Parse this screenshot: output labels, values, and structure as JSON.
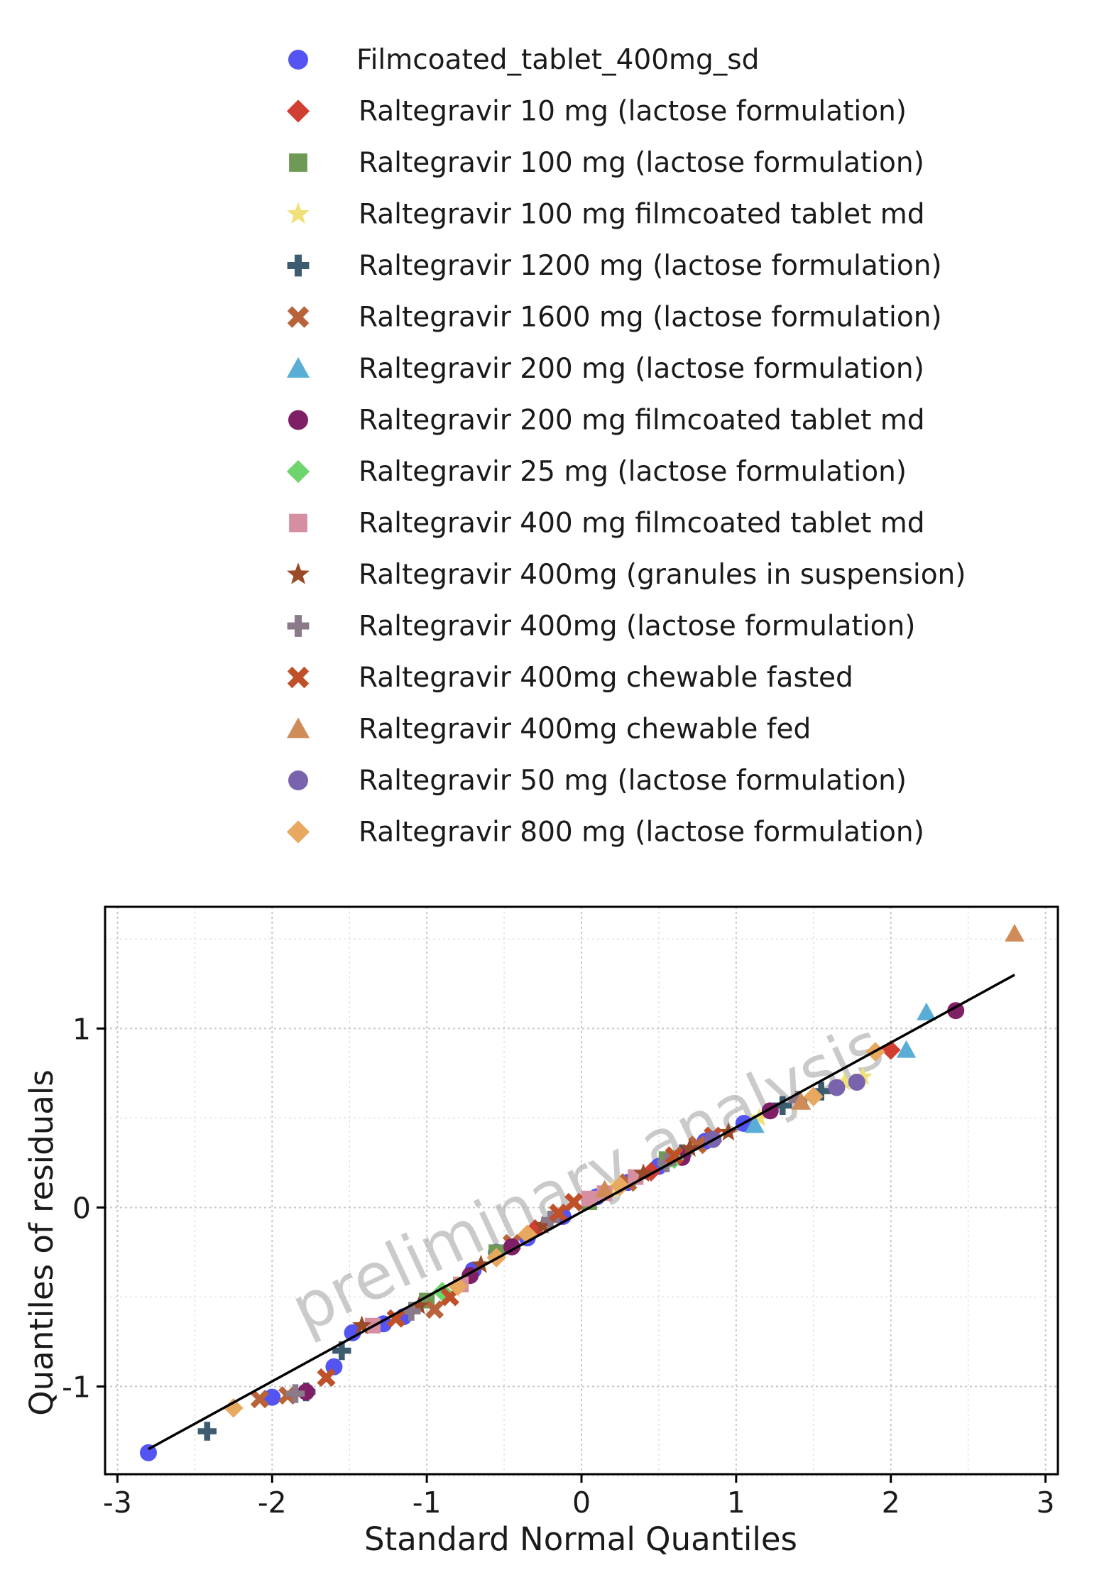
{
  "chart_data": {
    "type": "scatter",
    "xlabel": "Standard Normal Quantiles",
    "ylabel": "Quantiles of residuals",
    "watermark": "preliminary analysis",
    "xlim": [
      -3.08,
      3.08
    ],
    "ylim": [
      -1.49,
      1.68
    ],
    "xticks": [
      -3,
      -2,
      -1,
      0,
      1,
      2,
      3
    ],
    "yticks": [
      -1,
      0,
      1
    ],
    "grid": true,
    "legend_position": "top",
    "reference_line": {
      "x": [
        -2.8,
        2.8
      ],
      "y": [
        -1.35,
        1.3
      ]
    },
    "series": [
      {
        "name": "Filmcoated_tablet_400mg_sd",
        "marker": "circle",
        "color": "#5454f2",
        "x": [
          -2.8,
          -2.0,
          -1.6,
          -1.48,
          -1.28,
          -1.15,
          -0.7,
          -0.55,
          -0.35,
          -0.12,
          0.1,
          0.3,
          0.5,
          0.8,
          1.05
        ],
        "y": [
          -1.37,
          -1.06,
          -0.89,
          -0.7,
          -0.65,
          -0.61,
          -0.35,
          -0.25,
          -0.17,
          -0.05,
          0.06,
          0.14,
          0.23,
          0.37,
          0.47
        ]
      },
      {
        "name": "Raltegravir 10 mg (lactose formulation)",
        "marker": "diamond",
        "color": "#d13f32",
        "x": [
          -0.3,
          0.45,
          2.0
        ],
        "y": [
          -0.12,
          0.2,
          0.88
        ]
      },
      {
        "name": "Raltegravir 100 mg (lactose formulation)",
        "marker": "square",
        "color": "#6e9a55",
        "x": [
          -1.0,
          -0.55,
          0.05,
          0.55
        ],
        "y": [
          -0.52,
          -0.25,
          0.03,
          0.27
        ]
      },
      {
        "name": "Raltegravir 100 mg filmcoated tablet md",
        "marker": "star",
        "color": "#f0e07a",
        "x": [
          0.2,
          1.15,
          1.7,
          1.82
        ],
        "y": [
          0.1,
          0.5,
          0.7,
          0.73
        ]
      },
      {
        "name": "Raltegravir 1200 mg (lactose formulation)",
        "marker": "plus",
        "color": "#3d5c70",
        "x": [
          -2.42,
          -1.78,
          -1.55,
          0.65,
          1.3,
          1.55
        ],
        "y": [
          -1.25,
          -1.03,
          -0.8,
          0.3,
          0.57,
          0.65
        ]
      },
      {
        "name": "Raltegravir 1600 mg (lactose formulation)",
        "marker": "x",
        "color": "#b8633a",
        "x": [
          -2.08,
          -1.9,
          -0.95,
          -0.45,
          0.3,
          0.75
        ],
        "y": [
          -1.07,
          -1.05,
          -0.57,
          -0.2,
          0.14,
          0.35
        ]
      },
      {
        "name": "Raltegravir 200 mg (lactose formulation)",
        "marker": "triangle",
        "color": "#5aaed6",
        "x": [
          1.12,
          2.1,
          2.23
        ],
        "y": [
          0.46,
          0.88,
          1.09
        ]
      },
      {
        "name": "Raltegravir 200 mg filmcoated tablet md",
        "marker": "circle",
        "color": "#7f1f66",
        "x": [
          -1.78,
          -0.72,
          -0.45,
          0.65,
          1.22,
          2.42
        ],
        "y": [
          -1.03,
          -0.38,
          -0.22,
          0.28,
          0.54,
          1.1
        ]
      },
      {
        "name": "Raltegravir 25 mg (lactose formulation)",
        "marker": "diamond",
        "color": "#6ed46e",
        "x": [
          -0.9,
          0.6
        ],
        "y": [
          -0.47,
          0.27
        ]
      },
      {
        "name": "Raltegravir 400 mg filmcoated tablet md",
        "marker": "square",
        "color": "#d68fa0",
        "x": [
          -1.35,
          -0.78,
          0.05,
          0.15,
          0.35
        ],
        "y": [
          -0.66,
          -0.43,
          0.05,
          0.08,
          0.17
        ]
      },
      {
        "name": "Raltegravir 400mg (granules in suspension)",
        "marker": "star",
        "color": "#9a4a28",
        "x": [
          -1.42,
          -1.05,
          -0.65,
          -0.25,
          0.4,
          0.7,
          0.95
        ],
        "y": [
          -0.66,
          -0.55,
          -0.32,
          -0.1,
          0.19,
          0.33,
          0.42
        ]
      },
      {
        "name": "Raltegravir 400mg (lactose formulation)",
        "marker": "plus",
        "color": "#8a7a8a",
        "x": [
          -1.85,
          -1.1,
          -0.2,
          0.55,
          1.4
        ],
        "y": [
          -1.04,
          -0.58,
          -0.07,
          0.25,
          0.6
        ]
      },
      {
        "name": "Raltegravir 400mg chewable fasted",
        "marker": "x",
        "color": "#c0502a",
        "x": [
          -1.65,
          -1.2,
          -0.85,
          -0.15,
          -0.05,
          0.6,
          0.85
        ],
        "y": [
          -0.95,
          -0.62,
          -0.5,
          -0.03,
          0.03,
          0.29,
          0.4
        ]
      },
      {
        "name": "Raltegravir 400mg chewable fed",
        "marker": "triangle",
        "color": "#d08c58",
        "x": [
          0.15,
          1.42,
          2.8
        ],
        "y": [
          0.1,
          0.59,
          1.53
        ]
      },
      {
        "name": "Raltegravir 50 mg (lactose formulation)",
        "marker": "circle",
        "color": "#7a63ad",
        "x": [
          0.85,
          1.65,
          1.78
        ],
        "y": [
          0.38,
          0.67,
          0.7
        ]
      },
      {
        "name": "Raltegravir 800 mg (lactose formulation)",
        "marker": "diamond",
        "color": "#e8a860",
        "x": [
          -2.25,
          -0.8,
          -0.55,
          -0.35,
          0.25,
          1.5,
          1.9
        ],
        "y": [
          -1.12,
          -0.44,
          -0.28,
          -0.15,
          0.12,
          0.62,
          0.87
        ]
      }
    ]
  }
}
